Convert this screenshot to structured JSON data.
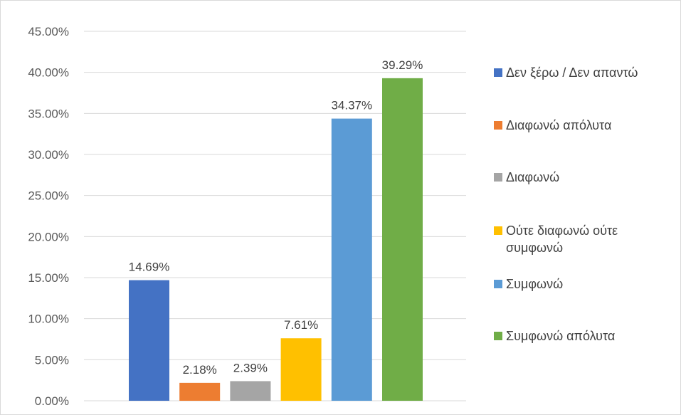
{
  "chart_data": {
    "type": "bar",
    "categories": [
      "Δεν ξέρω / Δεν απαντώ",
      "Διαφωνώ απόλυτα",
      "Διαφωνώ",
      "Ούτε διαφωνώ ούτε συμφωνώ",
      "Συμφωνώ",
      "Συμφωνώ απόλυτα"
    ],
    "values": [
      14.69,
      2.18,
      2.39,
      7.61,
      34.37,
      39.29
    ],
    "data_labels": [
      "14.69%",
      "2.18%",
      "2.39%",
      "7.61%",
      "34.37%",
      "39.29%"
    ],
    "colors": [
      "#4472c4",
      "#ed7d31",
      "#a5a5a5",
      "#ffc000",
      "#5b9bd5",
      "#70ad47"
    ],
    "y_ticks": [
      0,
      5,
      10,
      15,
      20,
      25,
      30,
      35,
      40,
      45
    ],
    "y_tick_labels": [
      "0.00%",
      "5.00%",
      "10.00%",
      "15.00%",
      "20.00%",
      "25.00%",
      "30.00%",
      "35.00%",
      "40.00%",
      "45.00%"
    ],
    "ylim": [
      0,
      45
    ],
    "title": "",
    "xlabel": "",
    "ylabel": "",
    "grid": true,
    "legend_position": "right"
  }
}
